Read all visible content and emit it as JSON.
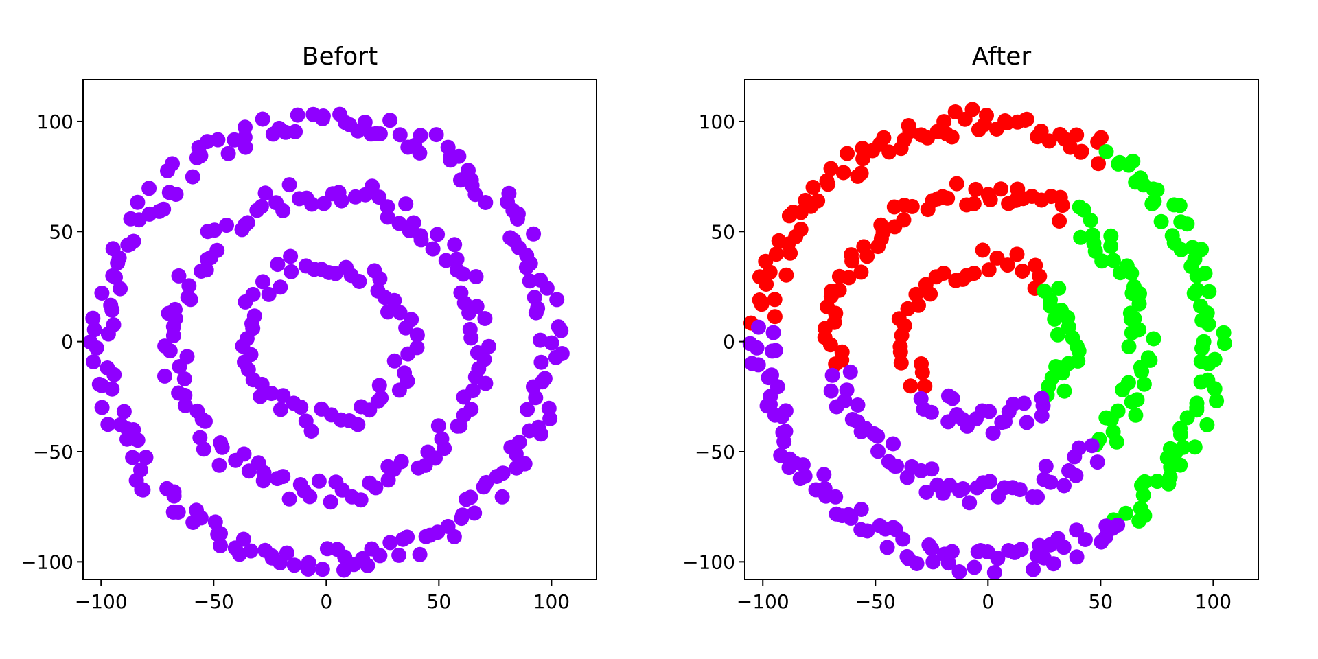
{
  "chart_data": [
    {
      "type": "scatter",
      "title": "Befort",
      "xlabel": "",
      "ylabel": "",
      "xlim": [
        -108,
        120
      ],
      "ylim": [
        -108,
        119
      ],
      "xticks": [
        -100,
        -50,
        0,
        50,
        100
      ],
      "yticks": [
        -100,
        -50,
        0,
        50,
        100
      ],
      "xtick_labels": [
        "−100",
        "−50",
        "0",
        "50",
        "100"
      ],
      "ytick_labels": [
        "−100",
        "−50",
        "0",
        "50",
        "100"
      ],
      "grid": false,
      "marker_color": "#8f00ff",
      "series": [
        {
          "name": "inner ring",
          "center": [
            0,
            0
          ],
          "radius": 36,
          "noise": 6,
          "angle_range_deg": [
            0,
            360
          ],
          "point_count": 60,
          "color": "#8f00ff"
        },
        {
          "name": "middle ring",
          "center": [
            0,
            0
          ],
          "radius": 68,
          "noise": 6,
          "angle_range_deg": [
            0,
            360
          ],
          "point_count": 120,
          "color": "#8f00ff"
        },
        {
          "name": "outer ring",
          "center": [
            0,
            0
          ],
          "radius": 100,
          "noise": 6,
          "angle_range_deg": [
            0,
            360
          ],
          "point_count": 190,
          "color": "#8f00ff"
        }
      ]
    },
    {
      "type": "scatter",
      "title": "After",
      "xlabel": "",
      "ylabel": "",
      "xlim": [
        -108,
        120
      ],
      "ylim": [
        -108,
        119
      ],
      "xticks": [
        -100,
        -50,
        0,
        50,
        100
      ],
      "yticks": [
        -100,
        -50,
        0,
        50,
        100
      ],
      "xtick_labels": [
        "−100",
        "−50",
        "0",
        "50",
        "100"
      ],
      "ytick_labels": [
        "−100",
        "−50",
        "0",
        "50",
        "100"
      ],
      "grid": false,
      "cluster_colors": {
        "red": "#ff0000",
        "green": "#00ff00",
        "purple": "#8f00ff"
      },
      "series": [
        {
          "name": "inner ring red",
          "center": [
            0,
            0
          ],
          "radius": 36,
          "noise": 6,
          "angle_range_deg": [
            45,
            220
          ],
          "point_count": 30,
          "color": "#ff0000"
        },
        {
          "name": "inner ring green",
          "center": [
            0,
            0
          ],
          "radius": 36,
          "noise": 6,
          "angle_range_deg": [
            -45,
            45
          ],
          "point_count": 20,
          "color": "#00ff00"
        },
        {
          "name": "inner ring purple",
          "center": [
            0,
            0
          ],
          "radius": 36,
          "noise": 6,
          "angle_range_deg": [
            220,
            315
          ],
          "point_count": 22,
          "color": "#8f00ff"
        },
        {
          "name": "middle ring red",
          "center": [
            0,
            0
          ],
          "radius": 68,
          "noise": 6,
          "angle_range_deg": [
            58,
            190
          ],
          "point_count": 50,
          "color": "#ff0000"
        },
        {
          "name": "middle ring green",
          "center": [
            0,
            0
          ],
          "radius": 68,
          "noise": 6,
          "angle_range_deg": [
            -45,
            58
          ],
          "point_count": 42,
          "color": "#00ff00"
        },
        {
          "name": "middle ring purple",
          "center": [
            0,
            0
          ],
          "radius": 68,
          "noise": 6,
          "angle_range_deg": [
            190,
            315
          ],
          "point_count": 48,
          "color": "#8f00ff"
        },
        {
          "name": "outer ring red",
          "center": [
            0,
            0
          ],
          "radius": 100,
          "noise": 6,
          "angle_range_deg": [
            58,
            175
          ],
          "point_count": 70,
          "color": "#ff0000"
        },
        {
          "name": "outer ring green",
          "center": [
            0,
            0
          ],
          "radius": 100,
          "noise": 6,
          "angle_range_deg": [
            -55,
            58
          ],
          "point_count": 70,
          "color": "#00ff00"
        },
        {
          "name": "outer ring purple",
          "center": [
            0,
            0
          ],
          "radius": 100,
          "noise": 6,
          "angle_range_deg": [
            175,
            305
          ],
          "point_count": 80,
          "color": "#8f00ff"
        }
      ]
    }
  ]
}
